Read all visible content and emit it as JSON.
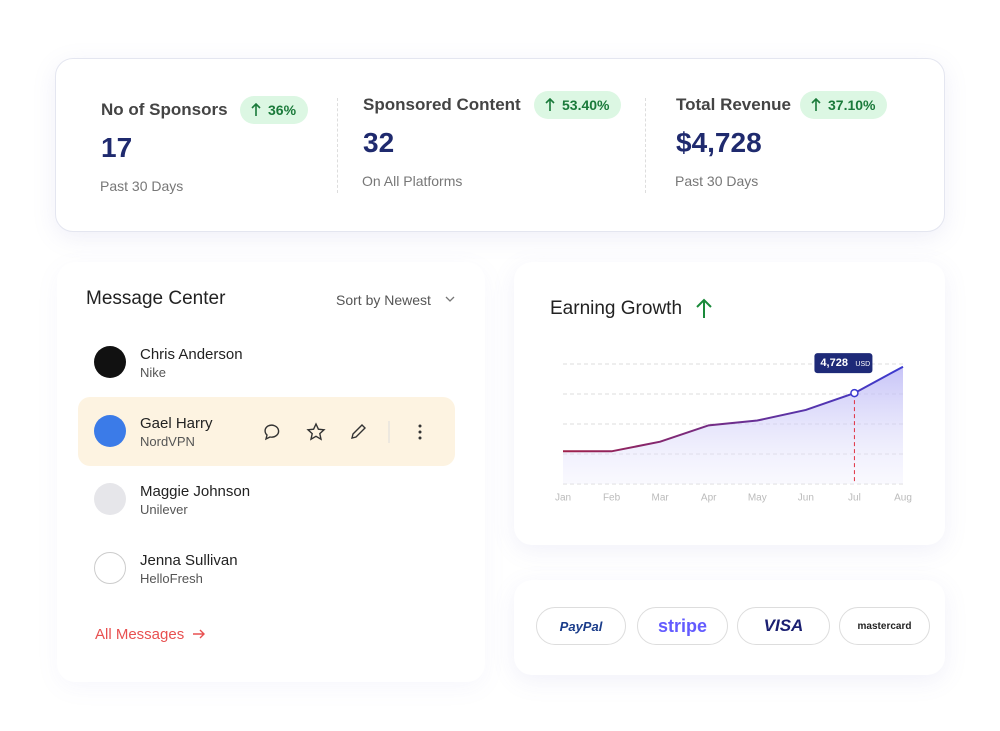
{
  "stats": [
    {
      "label": "No of Sponsors",
      "change": "36%",
      "value": "17",
      "note": "Past 30 Days"
    },
    {
      "label": "Sponsored Content",
      "change": "53.40%",
      "value": "32",
      "note": "On All Platforms"
    },
    {
      "label": "Total Revenue",
      "change": "37.10%",
      "value": "$4,728",
      "note": "Past 30 Days"
    }
  ],
  "messages": {
    "title": "Message Center",
    "sort": "Sort by Newest",
    "contacts": [
      {
        "name": "Chris Anderson",
        "company": "Nike"
      },
      {
        "name": "Gael Harry",
        "company": "NordVPN"
      },
      {
        "name": "Maggie Johnson",
        "company": "Unilever"
      },
      {
        "name": "Jenna Sullivan",
        "company": "HelloFresh"
      }
    ],
    "link": "All Messages"
  },
  "chart_data": {
    "type": "line",
    "title": "Earning Growth",
    "categories": [
      "Jan",
      "Feb",
      "Mar",
      "Apr",
      "May",
      "Jun",
      "Jul",
      "Aug"
    ],
    "series": [
      {
        "color": "#3b3bd0",
        "values": [
          1700,
          1700,
          2200,
          3050,
          3300,
          3850,
          4728,
          6100
        ],
        "value_labels": [
          null,
          null,
          null,
          null,
          null,
          null,
          "4,728",
          null
        ]
      }
    ],
    "tooltip_unit": "USD",
    "ylim": [
      0,
      6240
    ],
    "grid": true
  },
  "payments": [
    "PayPal",
    "stripe",
    "VISA",
    "mastercard"
  ]
}
